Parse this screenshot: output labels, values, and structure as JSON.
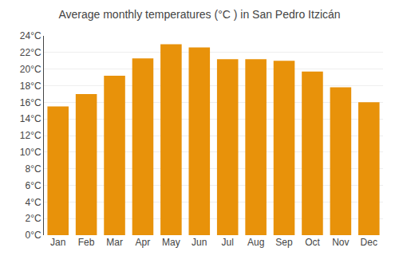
{
  "chart_data": {
    "type": "bar",
    "title": "Average monthly temperatures (°C ) in San Pedro Itzicán",
    "categories": [
      "Jan",
      "Feb",
      "Mar",
      "Apr",
      "May",
      "Jun",
      "Jul",
      "Aug",
      "Sep",
      "Oct",
      "Nov",
      "Dec"
    ],
    "values": [
      15.5,
      17.0,
      19.2,
      21.3,
      23.0,
      22.6,
      21.2,
      21.2,
      21.0,
      19.7,
      17.8,
      16.0
    ],
    "color": "#E8920A",
    "ylim": [
      0,
      24
    ],
    "yticks": [
      {
        "value": 0,
        "label": "0°C"
      },
      {
        "value": 2,
        "label": "2°C"
      },
      {
        "value": 4,
        "label": "4°C"
      },
      {
        "value": 6,
        "label": "6°C"
      },
      {
        "value": 8,
        "label": "8°C"
      },
      {
        "value": 10,
        "label": "10°C"
      },
      {
        "value": 12,
        "label": "12°C"
      },
      {
        "value": 14,
        "label": "14°C"
      },
      {
        "value": 16,
        "label": "16°C"
      },
      {
        "value": 18,
        "label": "18°C"
      },
      {
        "value": 20,
        "label": "20°C"
      },
      {
        "value": 22,
        "label": "22°C"
      },
      {
        "value": 24,
        "label": "24°C"
      }
    ],
    "grid": true
  }
}
